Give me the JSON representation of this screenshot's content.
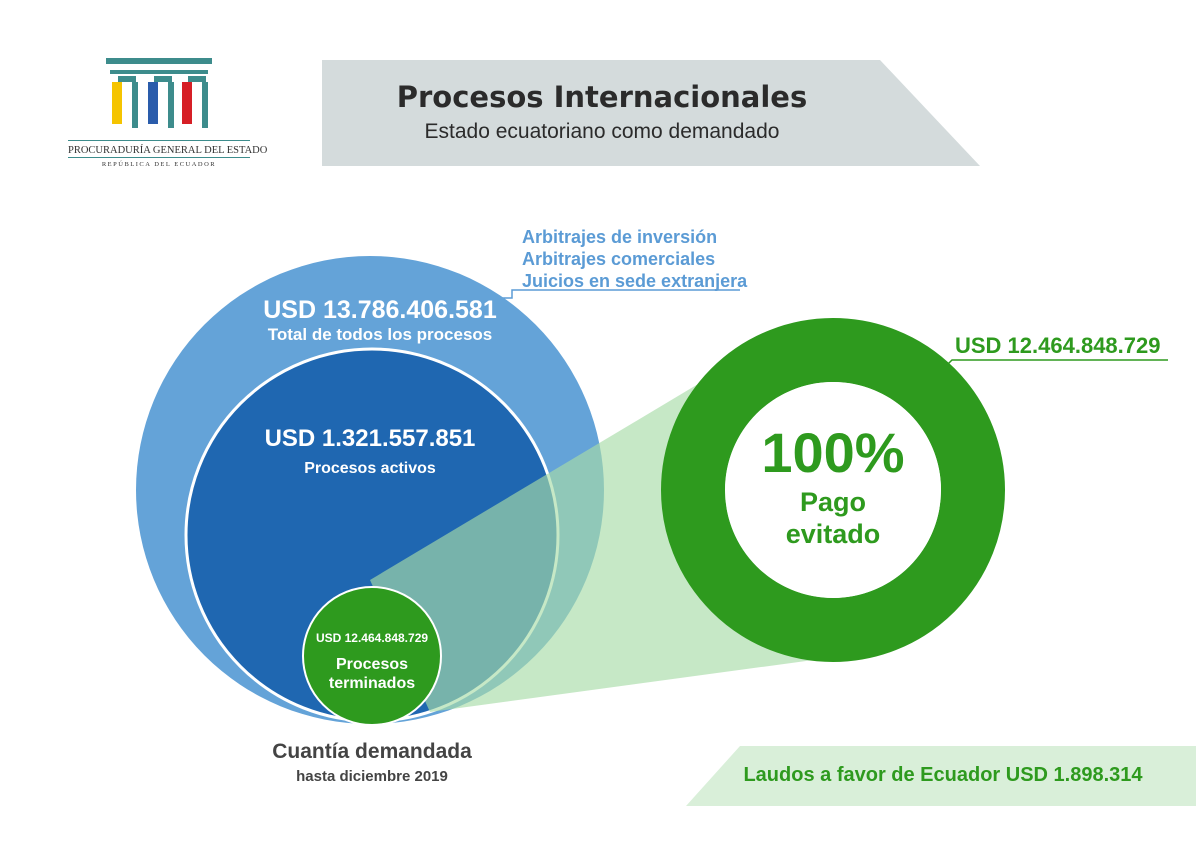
{
  "logo": {
    "name": "PROCURADURÍA GENERAL DEL ESTADO",
    "subtitle": "REPÚBLICA DEL ECUADOR",
    "colors": [
      "#f5c400",
      "#2a5cab",
      "#d61f26"
    ]
  },
  "header": {
    "title": "Procesos Internacionales",
    "subtitle": "Estado ecuatoriano como demandado"
  },
  "legend": {
    "items": [
      "Arbitrajes de inversión",
      "Arbitrajes comerciales",
      "Juicios en sede extranjera"
    ]
  },
  "total": {
    "value": "USD  13.786.406.581",
    "label": "Total de todos los procesos"
  },
  "active": {
    "value": "USD  1.321.557.851",
    "label": "Procesos activos"
  },
  "finished": {
    "value": "USD  12.464.848.729",
    "label_line1": "Procesos",
    "label_line2": "terminados"
  },
  "cuantia": {
    "title": "Cuantía demandada",
    "subtitle": "hasta diciembre 2019"
  },
  "avoided": {
    "percent": "100%",
    "label_line1": "Pago",
    "label_line2": "evitado",
    "amount": "USD  12.464.848.729"
  },
  "laudos": {
    "text": "Laudos a favor de Ecuador  USD  1.898.314"
  },
  "colors": {
    "light_blue": "#64a3d8",
    "dark_blue": "#1f67b1",
    "green": "#2e9a1e",
    "light_green": "#c6e8c8",
    "gray_banner": "#d4dbdc"
  }
}
